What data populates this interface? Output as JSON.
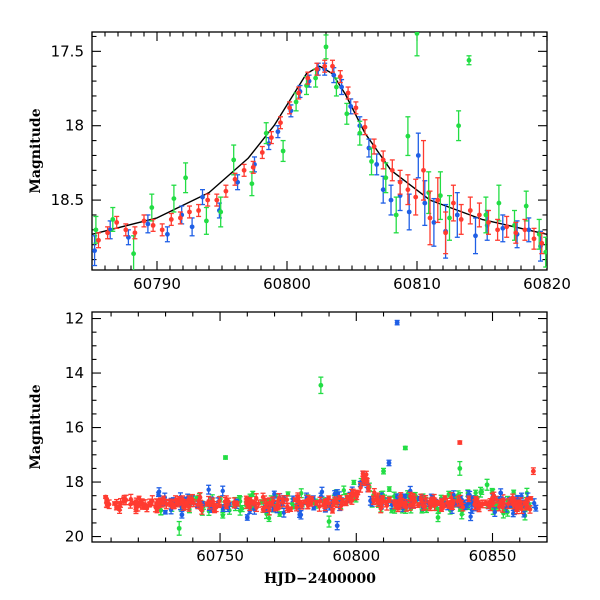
{
  "chart_data": [
    {
      "panel": "top",
      "type": "scatter",
      "title": "",
      "xlabel": "",
      "ylabel": "Magnitude",
      "xlim": [
        60785,
        60820
      ],
      "ylim": [
        18.97,
        17.37
      ],
      "y_inverted": true,
      "xticks": [
        60790,
        60800,
        60810,
        60820
      ],
      "xtick_minor_step": 1,
      "yticks": [
        17.5,
        18,
        18.5
      ],
      "ytick_labels": [
        "17.5",
        "18",
        "18.5"
      ],
      "ytick_minor_step": 0.1,
      "model": {
        "name": "",
        "color": "#000000",
        "x": [
          60785,
          60790,
          60794,
          60797,
          60799,
          60800.5,
          60801.5,
          60802.5,
          60803.5,
          60804.5,
          60806,
          60808,
          60811,
          60815,
          60820
        ],
        "y": [
          18.73,
          18.62,
          18.45,
          18.22,
          18.0,
          17.79,
          17.65,
          17.6,
          17.65,
          17.79,
          18.05,
          18.3,
          18.5,
          18.63,
          18.73
        ]
      },
      "series": [
        {
          "color": "#1f5fe6",
          "points": [
            [
              60785.2,
              18.84,
              0.1
            ],
            [
              60786.4,
              18.7,
              0.06
            ],
            [
              60787.8,
              18.75,
              0.05
            ],
            [
              60789.3,
              18.66,
              0.06
            ],
            [
              60790.8,
              18.73,
              0.05
            ],
            [
              60791.9,
              18.6,
              0.06
            ],
            [
              60792.7,
              18.68,
              0.06
            ],
            [
              60793.5,
              18.48,
              0.05
            ],
            [
              60794.8,
              18.57,
              0.05
            ],
            [
              60796.2,
              18.38,
              0.05
            ],
            [
              60797.5,
              18.26,
              0.05
            ],
            [
              60798.6,
              18.12,
              0.04
            ],
            [
              60799.3,
              18.04,
              0.04
            ],
            [
              60800.3,
              17.9,
              0.04
            ],
            [
              60801.0,
              17.77,
              0.04
            ],
            [
              60801.7,
              17.7,
              0.04
            ],
            [
              60802.4,
              17.62,
              0.04
            ],
            [
              60802.9,
              17.62,
              0.04
            ],
            [
              60803.6,
              17.66,
              0.05
            ],
            [
              60804.2,
              17.74,
              0.05
            ],
            [
              60804.9,
              17.87,
              0.05
            ],
            [
              60805.6,
              18.0,
              0.06
            ],
            [
              60806.3,
              18.15,
              0.06
            ],
            [
              60806.9,
              18.26,
              0.07
            ],
            [
              60807.4,
              18.43,
              0.09
            ],
            [
              60808.0,
              18.5,
              0.1
            ],
            [
              60808.7,
              18.47,
              0.1
            ],
            [
              60809.4,
              18.58,
              0.12
            ],
            [
              60810.1,
              18.2,
              0.15
            ],
            [
              60810.6,
              18.52,
              0.15
            ],
            [
              60811.3,
              18.65,
              0.16
            ],
            [
              60812.2,
              18.71,
              0.18
            ],
            [
              60813.1,
              18.6,
              0.15
            ],
            [
              60814.5,
              18.74,
              0.12
            ],
            [
              60815.4,
              18.67,
              0.1
            ],
            [
              60816.6,
              18.69,
              0.09
            ],
            [
              60817.7,
              18.73,
              0.09
            ],
            [
              60818.6,
              18.7,
              0.08
            ],
            [
              60819.5,
              18.81,
              0.1
            ]
          ]
        },
        {
          "color": "#22dd44",
          "points": [
            [
              60785.3,
              18.7,
              0.09
            ],
            [
              60786.6,
              18.63,
              0.08
            ],
            [
              60788.2,
              18.86,
              0.12
            ],
            [
              60789.6,
              18.55,
              0.09
            ],
            [
              60791.3,
              18.49,
              0.09
            ],
            [
              60792.2,
              18.35,
              0.1
            ],
            [
              60793.8,
              18.64,
              0.09
            ],
            [
              60794.9,
              18.58,
              0.1
            ],
            [
              60795.9,
              18.23,
              0.1
            ],
            [
              60797.3,
              18.39,
              0.08
            ],
            [
              60798.4,
              18.05,
              0.07
            ],
            [
              60799.7,
              18.17,
              0.07
            ],
            [
              60800.7,
              17.84,
              0.06
            ],
            [
              60801.5,
              17.73,
              0.06
            ],
            [
              60802.2,
              17.68,
              0.06
            ],
            [
              60803.0,
              17.47,
              0.08
            ],
            [
              60803.8,
              17.74,
              0.06
            ],
            [
              60804.6,
              17.92,
              0.07
            ],
            [
              60805.6,
              18.05,
              0.08
            ],
            [
              60806.5,
              18.24,
              0.09
            ],
            [
              60807.6,
              18.35,
              0.1
            ],
            [
              60808.4,
              18.6,
              0.12
            ],
            [
              60809.3,
              18.07,
              0.13
            ],
            [
              60810.0,
              17.38,
              0.15
            ],
            [
              60810.9,
              18.45,
              0.14
            ],
            [
              60811.8,
              18.47,
              0.16
            ],
            [
              60812.5,
              18.62,
              0.15
            ],
            [
              60813.2,
              18.0,
              0.1
            ],
            [
              60814.0,
              17.56,
              0.03
            ],
            [
              60815.3,
              18.6,
              0.12
            ],
            [
              60816.3,
              18.52,
              0.12
            ],
            [
              60817.5,
              18.67,
              0.1
            ],
            [
              60818.4,
              18.54,
              0.1
            ],
            [
              60819.4,
              18.73,
              0.1
            ],
            [
              60819.9,
              18.85,
              0.1
            ]
          ]
        },
        {
          "color": "#ff3b30",
          "points": [
            [
              60785.5,
              18.77,
              0.05
            ],
            [
              60786.2,
              18.72,
              0.04
            ],
            [
              60786.9,
              18.65,
              0.04
            ],
            [
              60787.6,
              18.7,
              0.04
            ],
            [
              60788.3,
              18.72,
              0.04
            ],
            [
              60789.0,
              18.64,
              0.04
            ],
            [
              60789.7,
              18.67,
              0.04
            ],
            [
              60790.4,
              18.7,
              0.04
            ],
            [
              60791.1,
              18.63,
              0.04
            ],
            [
              60791.8,
              18.62,
              0.04
            ],
            [
              60792.5,
              18.58,
              0.04
            ],
            [
              60793.2,
              18.57,
              0.04
            ],
            [
              60793.9,
              18.5,
              0.04
            ],
            [
              60794.6,
              18.5,
              0.04
            ],
            [
              60795.3,
              18.44,
              0.04
            ],
            [
              60796.0,
              18.36,
              0.04
            ],
            [
              60796.7,
              18.3,
              0.04
            ],
            [
              60797.4,
              18.28,
              0.04
            ],
            [
              60798.1,
              18.18,
              0.04
            ],
            [
              60798.8,
              18.08,
              0.04
            ],
            [
              60799.5,
              17.98,
              0.04
            ],
            [
              60800.2,
              17.88,
              0.04
            ],
            [
              60800.9,
              17.78,
              0.04
            ],
            [
              60801.6,
              17.68,
              0.04
            ],
            [
              60802.3,
              17.62,
              0.04
            ],
            [
              60802.9,
              17.6,
              0.04
            ],
            [
              60803.5,
              17.6,
              0.04
            ],
            [
              60804.1,
              17.67,
              0.04
            ],
            [
              60804.7,
              17.78,
              0.04
            ],
            [
              60805.3,
              17.88,
              0.04
            ],
            [
              60806.0,
              18.01,
              0.05
            ],
            [
              60806.7,
              18.14,
              0.05
            ],
            [
              60807.4,
              18.23,
              0.06
            ],
            [
              60808.1,
              18.3,
              0.07
            ],
            [
              60808.7,
              18.38,
              0.08
            ],
            [
              60809.3,
              18.43,
              0.1
            ],
            [
              60809.9,
              18.48,
              0.12
            ],
            [
              60810.5,
              18.3,
              0.2
            ],
            [
              60811.0,
              18.62,
              0.18
            ],
            [
              60811.6,
              18.5,
              0.15
            ],
            [
              60812.2,
              18.72,
              0.14
            ],
            [
              60812.8,
              18.52,
              0.12
            ],
            [
              60813.4,
              18.63,
              0.1
            ],
            [
              60814.1,
              18.57,
              0.09
            ],
            [
              60814.8,
              18.6,
              0.08
            ],
            [
              60815.5,
              18.65,
              0.08
            ],
            [
              60816.2,
              18.7,
              0.07
            ],
            [
              60816.9,
              18.68,
              0.07
            ],
            [
              60817.6,
              18.72,
              0.07
            ],
            [
              60818.3,
              18.7,
              0.07
            ],
            [
              60819.0,
              18.76,
              0.07
            ],
            [
              60819.6,
              18.79,
              0.07
            ]
          ]
        }
      ]
    },
    {
      "panel": "bottom",
      "type": "scatter",
      "title": "",
      "xlabel": "HJD−2400000",
      "ylabel": "Magnitude",
      "xlim": [
        60703,
        60870
      ],
      "ylim": [
        20.2,
        11.76
      ],
      "y_inverted": true,
      "xticks": [
        60750,
        60800,
        60850
      ],
      "xtick_minor_step": 10,
      "yticks": [
        12,
        14,
        16,
        18,
        20
      ],
      "ytick_labels": [
        "12",
        "14",
        "16",
        "18",
        "20"
      ],
      "ytick_minor_step": 0.5,
      "outliers": [
        {
          "color": "#1f5fe6",
          "points": [
            [
              60815,
              12.15,
              0.08
            ],
            [
              60812,
              17.3,
              0.1
            ],
            [
              60853,
              18.4,
              0.15
            ],
            [
              60793,
              19.6,
              0.15
            ],
            [
              60760,
              19.3,
              0.1
            ],
            [
              60736,
              19.2,
              0.12
            ]
          ]
        },
        {
          "color": "#22dd44",
          "points": [
            [
              60787,
              14.45,
              0.3
            ],
            [
              60752,
              17.1,
              0.06
            ],
            [
              60818,
              16.75,
              0.06
            ],
            [
              60838,
              17.5,
              0.25
            ],
            [
              60848,
              18.1,
              0.2
            ],
            [
              60735,
              19.7,
              0.25
            ],
            [
              60810,
              17.6,
              0.1
            ],
            [
              60830,
              19.3,
              0.15
            ],
            [
              60790,
              19.45,
              0.2
            ]
          ]
        },
        {
          "color": "#ff3b30",
          "points": [
            [
              60838,
              16.55,
              0.06
            ],
            [
              60865,
              17.6,
              0.12
            ],
            [
              60708,
              18.55,
              0.05
            ]
          ]
        }
      ]
    }
  ]
}
